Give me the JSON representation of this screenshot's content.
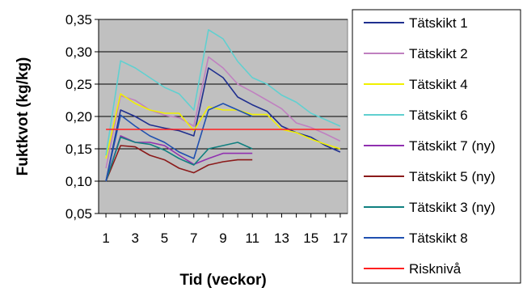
{
  "chart_data": {
    "type": "line",
    "xlabel": "Tid (veckor)",
    "ylabel": "Fuktkvot (kg/kg)",
    "x_ticks": [
      "1",
      "3",
      "5",
      "7",
      "9",
      "11",
      "13",
      "15",
      "17"
    ],
    "y_ticks": [
      "0,05",
      "0,10",
      "0,15",
      "0,20",
      "0,25",
      "0,30",
      "0,35"
    ],
    "xlim": [
      0.5,
      17.5
    ],
    "ylim": [
      0.05,
      0.35
    ],
    "grid": "horizontal",
    "plot_background": "#c0c0c0",
    "legend_position": "right",
    "series": [
      {
        "name": "Tätskikt 1",
        "color": "#1f2f8f",
        "x": [
          1,
          2,
          3,
          4,
          5,
          6,
          7,
          8,
          9,
          10,
          11,
          12,
          13,
          14,
          15,
          16,
          17
        ],
        "y": [
          0.1,
          0.21,
          0.2,
          0.187,
          0.182,
          0.178,
          0.17,
          0.275,
          0.26,
          0.23,
          0.218,
          0.208,
          0.185,
          0.175,
          0.168,
          0.155,
          0.145
        ]
      },
      {
        "name": "Tätskikt 2",
        "color": "#c080c0",
        "x": [
          1,
          2,
          3,
          4,
          5,
          6,
          7,
          8,
          9,
          10,
          11,
          12,
          13,
          14,
          15,
          16,
          17
        ],
        "y": [
          0.12,
          0.232,
          0.225,
          0.21,
          0.202,
          0.198,
          0.185,
          0.292,
          0.275,
          0.25,
          0.238,
          0.225,
          0.212,
          0.19,
          0.183,
          0.173,
          0.162
        ]
      },
      {
        "name": "Tätskikt 4",
        "color": "#f0f000",
        "x": [
          1,
          2,
          3,
          4,
          5,
          6,
          7,
          8,
          9,
          10,
          11,
          12,
          13,
          14,
          15,
          16,
          17
        ],
        "y": [
          0.135,
          0.235,
          0.22,
          0.21,
          0.205,
          0.205,
          0.178,
          0.215,
          0.21,
          0.21,
          0.203,
          0.203,
          0.18,
          0.175,
          0.165,
          0.157,
          0.15
        ]
      },
      {
        "name": "Tätskikt 6",
        "color": "#60d0d0",
        "x": [
          1,
          2,
          3,
          4,
          5,
          6,
          7,
          8,
          9,
          10,
          11,
          12,
          13,
          14,
          15,
          16,
          17
        ],
        "y": [
          0.14,
          0.286,
          0.275,
          0.26,
          0.245,
          0.235,
          0.21,
          0.334,
          0.32,
          0.285,
          0.26,
          0.25,
          0.233,
          0.222,
          0.205,
          0.195,
          0.185
        ]
      },
      {
        "name": "Tätskikt 7 (ny)",
        "color": "#9030b0",
        "x": [
          1,
          2,
          3,
          4,
          5,
          6,
          7,
          8,
          9,
          10,
          11
        ],
        "y": [
          0.1,
          0.17,
          0.16,
          0.16,
          0.155,
          0.14,
          0.126,
          0.135,
          0.143,
          0.143,
          0.143
        ]
      },
      {
        "name": "Tätskikt 5 (ny)",
        "color": "#8b1a1a",
        "x": [
          1,
          2,
          3,
          4,
          5,
          6,
          7,
          8,
          9,
          10,
          11
        ],
        "y": [
          0.1,
          0.155,
          0.153,
          0.14,
          0.133,
          0.12,
          0.113,
          0.125,
          0.13,
          0.133,
          0.133
        ]
      },
      {
        "name": "Tätskikt 3 (ny)",
        "color": "#108080",
        "x": [
          1,
          2,
          3,
          4,
          5,
          6,
          7,
          8,
          9,
          10,
          11
        ],
        "y": [
          0.1,
          0.168,
          0.16,
          0.157,
          0.148,
          0.135,
          0.125,
          0.15,
          0.155,
          0.16,
          0.15
        ]
      },
      {
        "name": "Tätskikt 8",
        "color": "#2050b0",
        "x": [
          1,
          2,
          3,
          4,
          5,
          6,
          7,
          8,
          9,
          10,
          11
        ],
        "y": [
          0.1,
          0.202,
          0.185,
          0.17,
          0.16,
          0.145,
          0.135,
          0.21,
          0.22,
          0.21,
          0.2
        ]
      },
      {
        "name": "Risknivå",
        "color": "#ff2020",
        "x": [
          1,
          17
        ],
        "y": [
          0.18,
          0.18
        ]
      }
    ]
  }
}
